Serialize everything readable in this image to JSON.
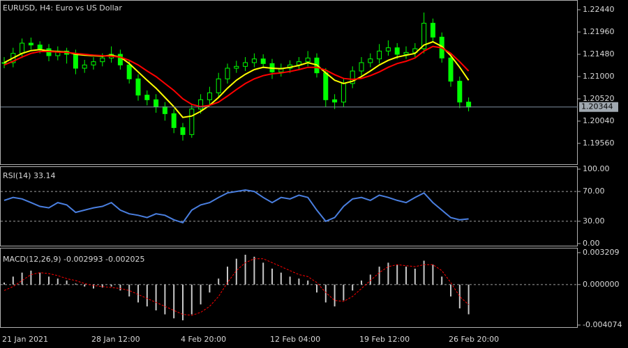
{
  "chart_data": [
    {
      "type": "candlestick",
      "title": "EURUSD, H4:  Euro vs US Dollar",
      "color": "#00ff00",
      "x": [
        "21 Jan 2021",
        null,
        null,
        null,
        null,
        null,
        null,
        null,
        null,
        null,
        "28 Jan 12:00",
        null,
        null,
        null,
        null,
        null,
        null,
        null,
        null,
        null,
        "4 Feb 20:00",
        null,
        null,
        null,
        null,
        null,
        null,
        null,
        null,
        null,
        "12 Feb 04:00",
        null,
        null,
        null,
        null,
        null,
        null,
        null,
        null,
        null,
        "19 Feb 12:00",
        null,
        null,
        null,
        null,
        null,
        null,
        null,
        null,
        null,
        "26 Feb 20:00",
        null,
        null
      ],
      "close": [
        1.213,
        1.215,
        1.2172,
        1.2168,
        1.216,
        1.2145,
        1.2155,
        1.2148,
        1.2118,
        1.2125,
        1.2132,
        1.214,
        1.2148,
        1.2125,
        1.2095,
        1.206,
        1.205,
        1.2035,
        1.202,
        1.199,
        1.1975,
        1.203,
        1.205,
        1.2065,
        1.2095,
        1.2118,
        1.2122,
        1.213,
        1.2138,
        1.2128,
        1.211,
        1.2118,
        1.2125,
        1.2132,
        1.214,
        1.2108,
        1.205,
        1.2045,
        1.2085,
        1.2112,
        1.213,
        1.2138,
        1.2155,
        1.2162,
        1.2148,
        1.2152,
        1.216,
        1.2215,
        1.2185,
        1.214,
        1.209,
        1.2045,
        1.20344
      ],
      "high": [
        1.2142,
        1.2162,
        1.2182,
        1.2184,
        1.2176,
        1.217,
        1.2165,
        1.2162,
        1.2158,
        1.2136,
        1.2142,
        1.215,
        1.2165,
        1.2158,
        1.2135,
        1.2105,
        1.207,
        1.2062,
        1.2045,
        1.203,
        1.2,
        1.204,
        1.2062,
        1.2078,
        1.2108,
        1.2128,
        1.2134,
        1.2142,
        1.215,
        1.2148,
        1.2138,
        1.2128,
        1.2135,
        1.2142,
        1.2155,
        1.215,
        1.2118,
        1.2062,
        1.2095,
        1.2122,
        1.2142,
        1.215,
        1.217,
        1.2178,
        1.2172,
        1.2165,
        1.2172,
        1.2238,
        1.2225,
        1.2195,
        1.215,
        1.21,
        1.2055
      ],
      "low": [
        1.2118,
        1.212,
        1.214,
        1.2158,
        1.215,
        1.2133,
        1.2135,
        1.2128,
        1.2105,
        1.2108,
        1.2115,
        1.2122,
        1.213,
        1.2115,
        1.2085,
        1.2048,
        1.2038,
        1.2022,
        1.2005,
        1.1978,
        1.1962,
        1.1968,
        1.202,
        1.204,
        1.2055,
        1.2085,
        1.2108,
        1.2112,
        1.212,
        1.2118,
        1.2095,
        1.21,
        1.2108,
        1.2115,
        1.2122,
        1.2098,
        1.2035,
        1.203,
        1.2035,
        1.2075,
        1.2102,
        1.212,
        1.2128,
        1.2145,
        1.2138,
        1.2138,
        1.2142,
        1.215,
        1.2175,
        1.213,
        1.2078,
        1.2032,
        1.2025
      ],
      "series": [
        {
          "color": "#ffff00",
          "values": [
            1.213,
            1.214,
            1.215,
            1.2156,
            1.2158,
            1.2155,
            1.2154,
            1.2153,
            1.2148,
            1.2146,
            1.2145,
            1.2144,
            1.2146,
            1.2142,
            1.2128,
            1.211,
            1.2092,
            1.2075,
            1.2055,
            1.2035,
            1.2012,
            1.2015,
            1.2025,
            1.2038,
            1.2055,
            1.2075,
            1.2092,
            1.2105,
            1.2115,
            1.212,
            1.2118,
            1.2117,
            1.212,
            1.2124,
            1.213,
            1.2125,
            1.2108,
            1.2092,
            1.2085,
            1.209,
            1.21,
            1.2112,
            1.2125,
            1.2135,
            1.2142,
            1.2146,
            1.215,
            1.2168,
            1.2175,
            1.2165,
            1.2145,
            1.212,
            1.2092
          ]
        },
        {
          "color": "#ff0000",
          "values": [
            1.2125,
            1.2133,
            1.2142,
            1.215,
            1.2154,
            1.2154,
            1.2153,
            1.2152,
            1.215,
            1.2148,
            1.2146,
            1.2145,
            1.2144,
            1.2142,
            1.2135,
            1.2125,
            1.2112,
            1.21,
            1.2085,
            1.207,
            1.2052,
            1.204,
            1.2035,
            1.2038,
            1.2045,
            1.2058,
            1.2072,
            1.2085,
            1.2095,
            1.2102,
            1.2106,
            1.2108,
            1.2111,
            1.2115,
            1.212,
            1.212,
            1.2114,
            1.2104,
            1.2096,
            1.2094,
            1.2096,
            1.2102,
            1.211,
            1.212,
            1.2128,
            1.2133,
            1.214,
            1.2155,
            1.2165,
            1.2162,
            1.215,
            1.2132,
            1.2112
          ]
        }
      ],
      "last_price": 1.20344,
      "ylim": [
        1.19095,
        1.2265
      ],
      "yticks": [
        {
          "value": 1.2244,
          "label": "1.22440"
        },
        {
          "value": 1.2196,
          "label": "1.21960"
        },
        {
          "value": 1.2148,
          "label": "1.21480"
        },
        {
          "value": 1.21,
          "label": "1.21000"
        },
        {
          "value": 1.2052,
          "label": "1.20520"
        },
        {
          "value": 1.2004,
          "label": "1.20040"
        },
        {
          "value": 1.1956,
          "label": "1.19560"
        }
      ],
      "grid": false
    },
    {
      "type": "line",
      "title": "RSI(14) 33.14",
      "color": "#4a7fe0",
      "values": [
        58,
        62,
        60,
        55,
        50,
        48,
        55,
        52,
        42,
        45,
        48,
        50,
        55,
        45,
        40,
        38,
        35,
        40,
        38,
        32,
        28,
        45,
        52,
        55,
        62,
        68,
        70,
        72,
        70,
        62,
        55,
        62,
        60,
        65,
        62,
        45,
        30,
        35,
        50,
        60,
        62,
        58,
        65,
        62,
        58,
        55,
        62,
        68,
        55,
        45,
        35,
        32,
        33.14
      ],
      "ylim": [
        0,
        100
      ],
      "yticks": [
        {
          "value": 100,
          "label": "100.00"
        },
        {
          "value": 70,
          "label": "70.00"
        },
        {
          "value": 30,
          "label": "30.00"
        },
        {
          "value": 0,
          "label": "0.00"
        }
      ],
      "grid": true
    },
    {
      "type": "macd",
      "title": "MACD(12,26,9) -0.002993 -0.002025",
      "series": [
        {
          "color": "#c8c8c8",
          "values": [
            0.0002,
            0.0008,
            0.0012,
            0.0014,
            0.0012,
            0.0008,
            0.0006,
            0.0004,
            0.0001,
            -0.0002,
            -0.0004,
            -0.0003,
            -0.0002,
            -0.0006,
            -0.0012,
            -0.0018,
            -0.0022,
            -0.0026,
            -0.003,
            -0.0034,
            -0.0036,
            -0.003,
            -0.002,
            -0.0008,
            0.0006,
            0.0018,
            0.0026,
            0.003,
            0.0028,
            0.0022,
            0.0016,
            0.0012,
            0.0008,
            0.0006,
            0.0004,
            -0.0008,
            -0.0018,
            -0.0022,
            -0.0016,
            -0.0006,
            0.0004,
            0.001,
            0.0018,
            0.0022,
            0.002,
            0.0018,
            0.0016,
            0.0024,
            0.002,
            0.0008,
            -0.0012,
            -0.0024,
            -0.002993
          ]
        },
        {
          "color": "#ff0000",
          "values": [
            -0.0006,
            -0.0002,
            0.0004,
            0.001,
            0.0012,
            0.0011,
            0.0009,
            0.0006,
            0.0004,
            0.0001,
            -0.0001,
            -0.0002,
            -0.0003,
            -0.0004,
            -0.0006,
            -0.001,
            -0.0014,
            -0.0018,
            -0.0022,
            -0.0026,
            -0.003,
            -0.0031,
            -0.0028,
            -0.0022,
            -0.0012,
            0.0002,
            0.0014,
            0.0022,
            0.0026,
            0.0026,
            0.0022,
            0.0018,
            0.0014,
            0.001,
            0.0008,
            0.0002,
            -0.0008,
            -0.0016,
            -0.0017,
            -0.0012,
            -0.0004,
            0.0004,
            0.0012,
            0.0018,
            0.002,
            0.0019,
            0.0018,
            0.002,
            0.002,
            0.0014,
            0.0002,
            -0.0012,
            -0.002025
          ]
        }
      ],
      "ylim": [
        -0.004074,
        0.003209
      ],
      "yticks": [
        {
          "value": 0.003209,
          "label": "0.003209"
        },
        {
          "value": 0,
          "label": "0.000000"
        },
        {
          "value": -0.004074,
          "label": "-0.004074"
        }
      ],
      "grid": true
    }
  ]
}
